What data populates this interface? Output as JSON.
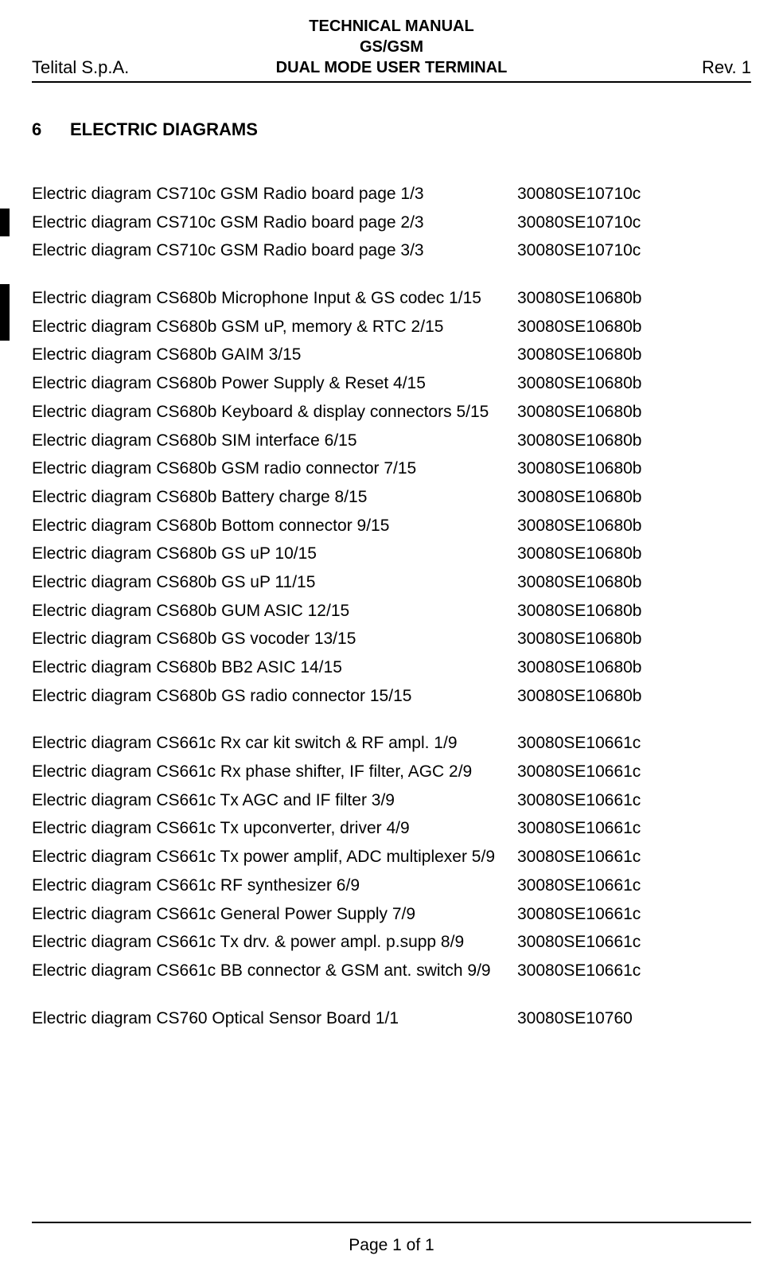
{
  "header": {
    "title_line1": "TECHNICAL MANUAL",
    "title_line2": "GS/GSM",
    "title_line3": "DUAL MODE USER TERMINAL",
    "left": "Telital S.p.A.",
    "right": "Rev. 1"
  },
  "section": {
    "number": "6",
    "title": "ELECTRIC DIAGRAMS"
  },
  "groups": [
    {
      "rows": [
        {
          "desc": "Electric diagram CS710c GSM Radio board page 1/3",
          "code": "30080SE10710c",
          "bar": false
        },
        {
          "desc": "Electric diagram CS710c GSM Radio board page 2/3",
          "code": "30080SE10710c",
          "bar": true
        },
        {
          "desc": "Electric diagram CS710c GSM Radio board page 3/3",
          "code": "30080SE10710c",
          "bar": false
        }
      ]
    },
    {
      "rows": [
        {
          "desc": "Electric diagram CS680b Microphone Input & GS codec 1/15",
          "code": "30080SE10680b",
          "bar": true
        },
        {
          "desc": "Electric diagram CS680b GSM uP, memory & RTC 2/15",
          "code": "30080SE10680b",
          "bar": true
        },
        {
          "desc": "Electric diagram CS680b GAIM 3/15",
          "code": "30080SE10680b",
          "bar": false
        },
        {
          "desc": "Electric diagram CS680b Power Supply & Reset 4/15",
          "code": "30080SE10680b",
          "bar": false
        },
        {
          "desc": "Electric diagram CS680b Keyboard & display connectors 5/15",
          "code": "30080SE10680b",
          "bar": false
        },
        {
          "desc": "Electric diagram CS680b SIM interface 6/15",
          "code": "30080SE10680b",
          "bar": false
        },
        {
          "desc": "Electric diagram CS680b GSM radio connector 7/15",
          "code": "30080SE10680b",
          "bar": false
        },
        {
          "desc": "Electric diagram CS680b Battery charge 8/15",
          "code": "30080SE10680b",
          "bar": false
        },
        {
          "desc": "Electric diagram CS680b  Bottom connector 9/15",
          "code": "30080SE10680b",
          "bar": false
        },
        {
          "desc": "Electric diagram CS680b  GS uP 10/15",
          "code": "30080SE10680b",
          "bar": false
        },
        {
          "desc": "Electric diagram CS680b  GS uP 11/15",
          "code": "30080SE10680b",
          "bar": false
        },
        {
          "desc": "Electric diagram CS680b  GUM ASIC 12/15",
          "code": "30080SE10680b",
          "bar": false
        },
        {
          "desc": "Electric diagram CS680b GS vocoder 13/15",
          "code": "30080SE10680b",
          "bar": false
        },
        {
          "desc": "Electric diagram CS680b BB2 ASIC 14/15",
          "code": "30080SE10680b",
          "bar": false
        },
        {
          "desc": "Electric diagram CS680b GS radio connector 15/15",
          "code": "30080SE10680b",
          "bar": false
        }
      ]
    },
    {
      "rows": [
        {
          "desc": "Electric diagram CS661c Rx car kit switch & RF ampl. 1/9",
          "code": "30080SE10661c",
          "bar": false
        },
        {
          "desc": "Electric diagram CS661c Rx phase shifter, IF filter, AGC 2/9",
          "code": "30080SE10661c",
          "bar": false
        },
        {
          "desc": "Electric diagram CS661c Tx AGC and IF filter 3/9",
          "code": "30080SE10661c",
          "bar": false
        },
        {
          "desc": "Electric diagram CS661c Tx upconverter, driver 4/9",
          "code": "30080SE10661c",
          "bar": false
        },
        {
          "desc": "Electric diagram CS661c Tx power amplif, ADC multiplexer 5/9",
          "code": "30080SE10661c",
          "bar": false
        },
        {
          "desc": "Electric diagram CS661c RF synthesizer 6/9",
          "code": "30080SE10661c",
          "bar": false
        },
        {
          "desc": "Electric diagram CS661c General Power Supply  7/9",
          "code": "30080SE10661c",
          "bar": false
        },
        {
          "desc": "Electric diagram CS661c Tx drv. & power ampl. p.supp  8/9",
          "code": "30080SE10661c",
          "bar": false
        },
        {
          "desc": "Electric diagram CS661c BB connector & GSM ant. switch 9/9",
          "code": "30080SE10661c",
          "bar": false
        }
      ]
    },
    {
      "rows": [
        {
          "desc": "Electric diagram CS760 Optical Sensor Board 1/1",
          "code": "30080SE10760",
          "bar": false
        }
      ]
    }
  ],
  "footer": {
    "page_text": "Page 1 of 1"
  }
}
